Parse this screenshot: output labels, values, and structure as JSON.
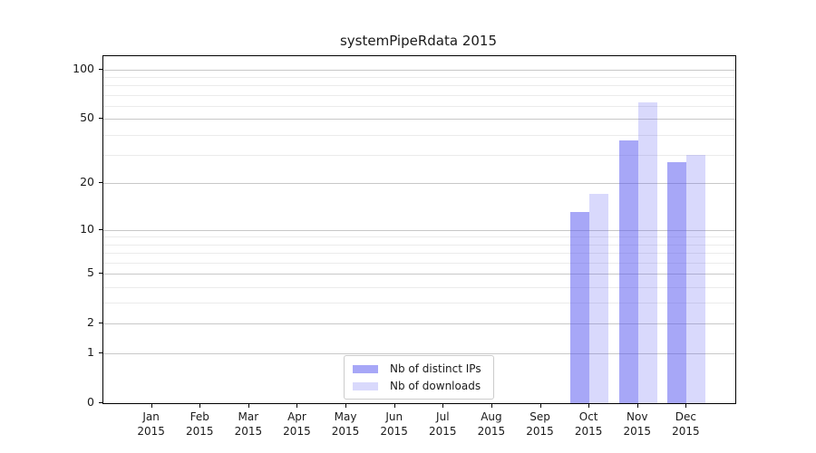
{
  "chart_data": {
    "type": "bar",
    "title": "systemPipeRdata 2015",
    "xlabel": "",
    "ylabel": "",
    "categories": [
      "Jan 2015",
      "Feb 2015",
      "Mar 2015",
      "Apr 2015",
      "May 2015",
      "Jun 2015",
      "Jul 2015",
      "Aug 2015",
      "Sep 2015",
      "Oct 2015",
      "Nov 2015",
      "Dec 2015"
    ],
    "series": [
      {
        "name": "Nb of distinct IPs",
        "color": "#5050f0",
        "opacity": 0.5,
        "values": [
          0,
          0,
          0,
          0,
          0,
          0,
          0,
          0,
          0,
          13,
          37,
          27
        ]
      },
      {
        "name": "Nb of downloads",
        "color": "#5050f0",
        "opacity": 0.22,
        "values": [
          0,
          0,
          0,
          0,
          0,
          0,
          0,
          0,
          0,
          17,
          63,
          30
        ]
      }
    ],
    "yticks": [
      0,
      1,
      2,
      5,
      10,
      20,
      50,
      100
    ],
    "minor_gridlines": [
      3,
      4,
      6,
      7,
      8,
      9,
      30,
      40,
      60,
      70,
      80,
      90
    ],
    "scale": "log1p",
    "ylim": [
      0,
      120.3
    ],
    "grid": "horizontal",
    "legend_position": "inside-bottom-center",
    "background": "#ffffff"
  }
}
